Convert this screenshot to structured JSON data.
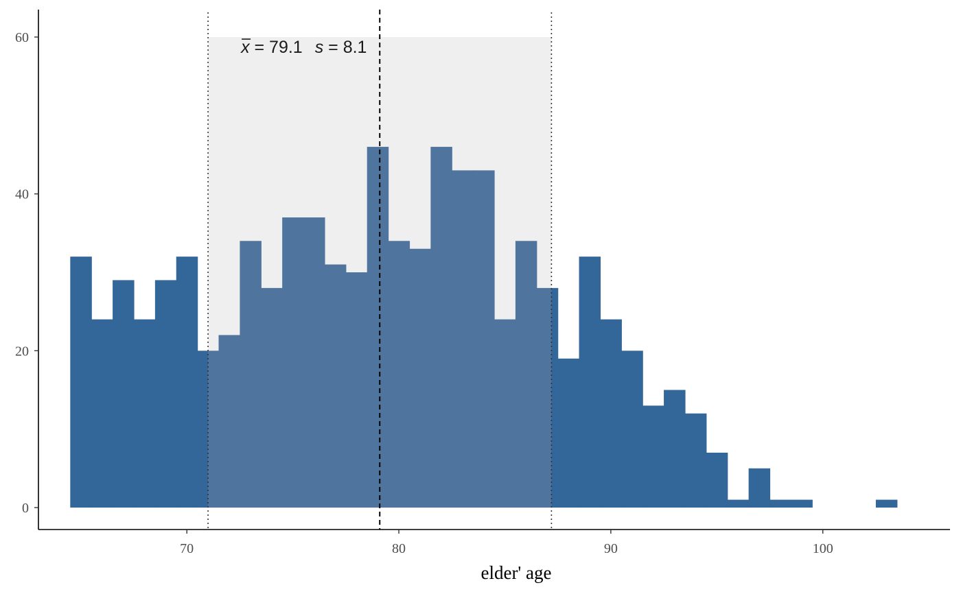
{
  "chart_data": {
    "type": "bar",
    "xlabel": "elder' age",
    "ylabel": "",
    "xlim": [
      63,
      106
    ],
    "ylim": [
      -2.8,
      63.5
    ],
    "x_ticks": [
      70,
      80,
      90,
      100
    ],
    "y_ticks": [
      0,
      20,
      40,
      60
    ],
    "grid": false,
    "bin_width": 1,
    "bins": [
      {
        "start": 64.5,
        "count": 32
      },
      {
        "start": 65.5,
        "count": 24
      },
      {
        "start": 66.5,
        "count": 29
      },
      {
        "start": 67.5,
        "count": 24
      },
      {
        "start": 68.5,
        "count": 29
      },
      {
        "start": 69.5,
        "count": 32
      },
      {
        "start": 70.5,
        "count": 20
      },
      {
        "start": 71.5,
        "count": 22
      },
      {
        "start": 72.5,
        "count": 34
      },
      {
        "start": 73.5,
        "count": 28
      },
      {
        "start": 74.5,
        "count": 37
      },
      {
        "start": 75.5,
        "count": 37
      },
      {
        "start": 76.5,
        "count": 31
      },
      {
        "start": 77.5,
        "count": 30
      },
      {
        "start": 78.5,
        "count": 46
      },
      {
        "start": 79.5,
        "count": 34
      },
      {
        "start": 80.5,
        "count": 33
      },
      {
        "start": 81.5,
        "count": 46
      },
      {
        "start": 82.5,
        "count": 43
      },
      {
        "start": 83.5,
        "count": 43
      },
      {
        "start": 84.5,
        "count": 24
      },
      {
        "start": 85.5,
        "count": 34
      },
      {
        "start": 86.5,
        "count": 28
      },
      {
        "start": 87.5,
        "count": 19
      },
      {
        "start": 88.5,
        "count": 32
      },
      {
        "start": 89.5,
        "count": 24
      },
      {
        "start": 90.5,
        "count": 20
      },
      {
        "start": 91.5,
        "count": 13
      },
      {
        "start": 92.5,
        "count": 15
      },
      {
        "start": 93.5,
        "count": 12
      },
      {
        "start": 94.5,
        "count": 7
      },
      {
        "start": 95.5,
        "count": 1
      },
      {
        "start": 96.5,
        "count": 5
      },
      {
        "start": 97.5,
        "count": 1
      },
      {
        "start": 98.5,
        "count": 1
      },
      {
        "start": 99.5,
        "count": 0
      },
      {
        "start": 100.5,
        "count": 0
      },
      {
        "start": 101.5,
        "count": 0
      },
      {
        "start": 102.5,
        "count": 1
      }
    ],
    "mean": 79.1,
    "sd": 8.1,
    "sd_band": [
      71.0,
      87.2
    ],
    "band_top": 60,
    "annotation": {
      "mean_symbol": "x",
      "mean_text": " = 79.1",
      "sd_symbol": "s",
      "sd_text": " = 8.1"
    },
    "colors": {
      "bar": "#336699",
      "bar_in_band": "#4f749e",
      "band": "#efefef",
      "mean_line": "#000000",
      "sd_lines": "#333333",
      "axis": "#000000"
    }
  }
}
